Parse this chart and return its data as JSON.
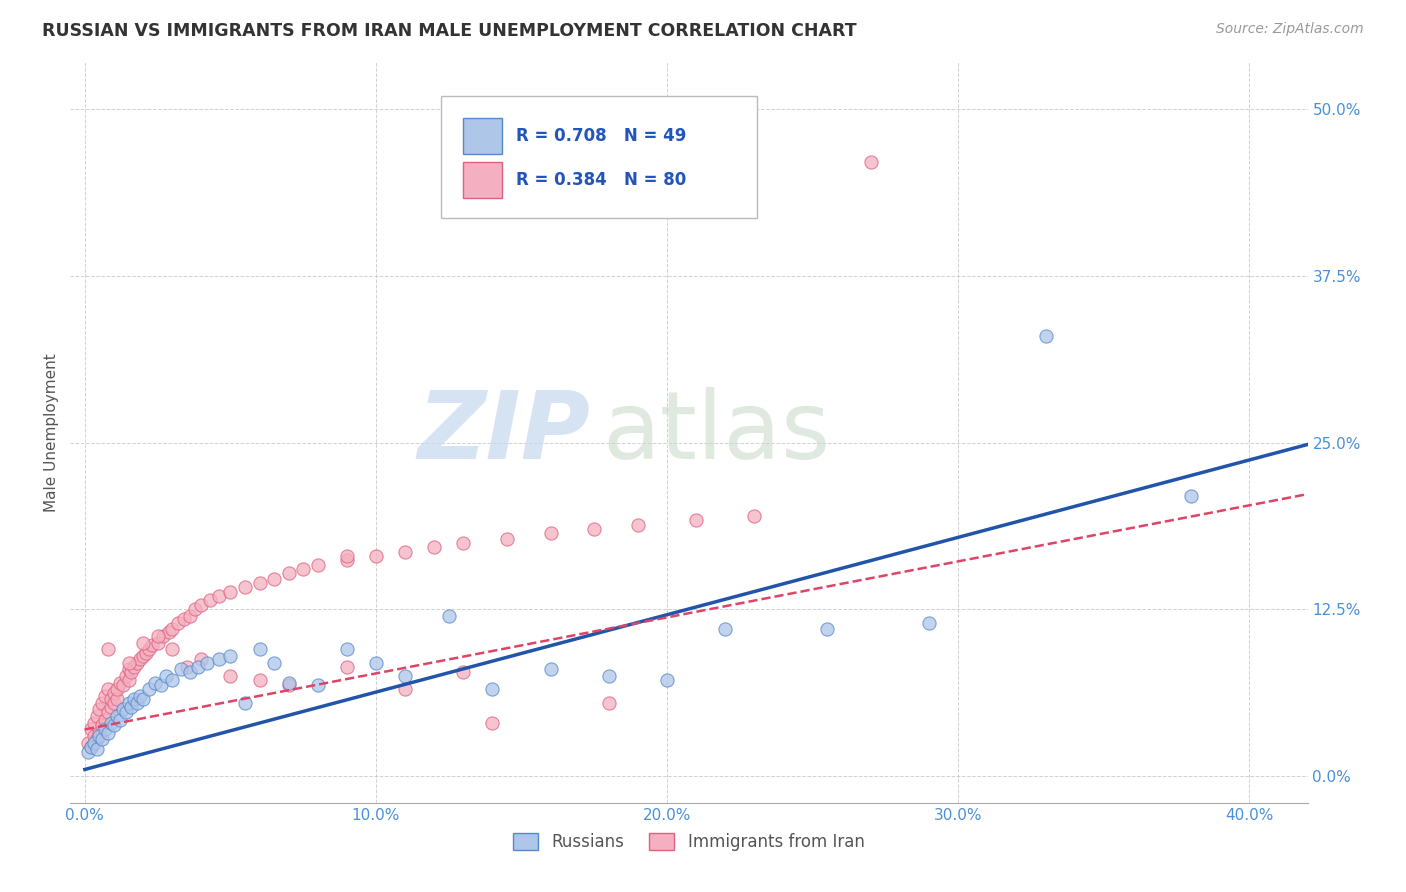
{
  "title": "RUSSIAN VS IMMIGRANTS FROM IRAN MALE UNEMPLOYMENT CORRELATION CHART",
  "source": "Source: ZipAtlas.com",
  "ylabel": "Male Unemployment",
  "xlabel_ticks": [
    "0.0%",
    "10.0%",
    "20.0%",
    "30.0%",
    "40.0%"
  ],
  "xlabel_vals": [
    0.0,
    0.1,
    0.2,
    0.3,
    0.4
  ],
  "ylabel_ticks": [
    "0.0%",
    "12.5%",
    "25.0%",
    "37.5%",
    "50.0%"
  ],
  "ylabel_vals": [
    0.0,
    0.125,
    0.25,
    0.375,
    0.5
  ],
  "xlim": [
    -0.005,
    0.42
  ],
  "ylim": [
    -0.02,
    0.535
  ],
  "blue_R": 0.708,
  "blue_N": 49,
  "pink_R": 0.384,
  "pink_N": 80,
  "blue_color": "#aec6e8",
  "pink_color": "#f4b0c0",
  "blue_edge_color": "#5588cc",
  "pink_edge_color": "#e06080",
  "blue_line_color": "#2255aa",
  "pink_line_color": "#dd4466",
  "legend_label_blue": "Russians",
  "legend_label_pink": "Immigrants from Iran",
  "watermark_zip": "ZIP",
  "watermark_atlas": "atlas",
  "background_color": "#ffffff",
  "blue_scatter_x": [
    0.001,
    0.002,
    0.003,
    0.004,
    0.005,
    0.006,
    0.007,
    0.008,
    0.009,
    0.01,
    0.011,
    0.012,
    0.013,
    0.014,
    0.015,
    0.016,
    0.017,
    0.018,
    0.019,
    0.02,
    0.022,
    0.024,
    0.026,
    0.028,
    0.03,
    0.033,
    0.036,
    0.039,
    0.042,
    0.046,
    0.05,
    0.055,
    0.06,
    0.065,
    0.07,
    0.08,
    0.09,
    0.1,
    0.11,
    0.125,
    0.14,
    0.16,
    0.18,
    0.2,
    0.22,
    0.255,
    0.29,
    0.33,
    0.38
  ],
  "blue_scatter_y": [
    0.018,
    0.022,
    0.025,
    0.02,
    0.03,
    0.028,
    0.035,
    0.032,
    0.04,
    0.038,
    0.045,
    0.042,
    0.05,
    0.048,
    0.055,
    0.052,
    0.058,
    0.055,
    0.06,
    0.058,
    0.065,
    0.07,
    0.068,
    0.075,
    0.072,
    0.08,
    0.078,
    0.082,
    0.085,
    0.088,
    0.09,
    0.055,
    0.095,
    0.085,
    0.07,
    0.068,
    0.095,
    0.085,
    0.075,
    0.12,
    0.065,
    0.08,
    0.075,
    0.072,
    0.11,
    0.11,
    0.115,
    0.33,
    0.21
  ],
  "pink_scatter_x": [
    0.001,
    0.002,
    0.002,
    0.003,
    0.003,
    0.004,
    0.004,
    0.005,
    0.005,
    0.006,
    0.006,
    0.007,
    0.007,
    0.008,
    0.008,
    0.009,
    0.009,
    0.01,
    0.01,
    0.011,
    0.011,
    0.012,
    0.013,
    0.014,
    0.015,
    0.015,
    0.016,
    0.017,
    0.018,
    0.019,
    0.02,
    0.021,
    0.022,
    0.023,
    0.025,
    0.027,
    0.029,
    0.03,
    0.032,
    0.034,
    0.036,
    0.038,
    0.04,
    0.043,
    0.046,
    0.05,
    0.055,
    0.06,
    0.065,
    0.07,
    0.075,
    0.08,
    0.09,
    0.1,
    0.11,
    0.12,
    0.13,
    0.145,
    0.16,
    0.175,
    0.19,
    0.21,
    0.23,
    0.008,
    0.015,
    0.02,
    0.025,
    0.03,
    0.035,
    0.04,
    0.05,
    0.06,
    0.07,
    0.09,
    0.11,
    0.13,
    0.27,
    0.09,
    0.18,
    0.14
  ],
  "pink_scatter_y": [
    0.025,
    0.022,
    0.035,
    0.03,
    0.04,
    0.028,
    0.045,
    0.032,
    0.05,
    0.038,
    0.055,
    0.042,
    0.06,
    0.048,
    0.065,
    0.052,
    0.058,
    0.055,
    0.062,
    0.058,
    0.065,
    0.07,
    0.068,
    0.075,
    0.072,
    0.08,
    0.078,
    0.082,
    0.085,
    0.088,
    0.09,
    0.092,
    0.095,
    0.098,
    0.1,
    0.105,
    0.108,
    0.11,
    0.115,
    0.118,
    0.12,
    0.125,
    0.128,
    0.132,
    0.135,
    0.138,
    0.142,
    0.145,
    0.148,
    0.152,
    0.155,
    0.158,
    0.162,
    0.165,
    0.168,
    0.172,
    0.175,
    0.178,
    0.182,
    0.185,
    0.188,
    0.192,
    0.195,
    0.095,
    0.085,
    0.1,
    0.105,
    0.095,
    0.082,
    0.088,
    0.075,
    0.072,
    0.068,
    0.082,
    0.065,
    0.078,
    0.46,
    0.165,
    0.055,
    0.04
  ],
  "blue_line_slope": 0.58,
  "blue_line_intercept": 0.005,
  "pink_line_slope": 0.42,
  "pink_line_intercept": 0.035
}
